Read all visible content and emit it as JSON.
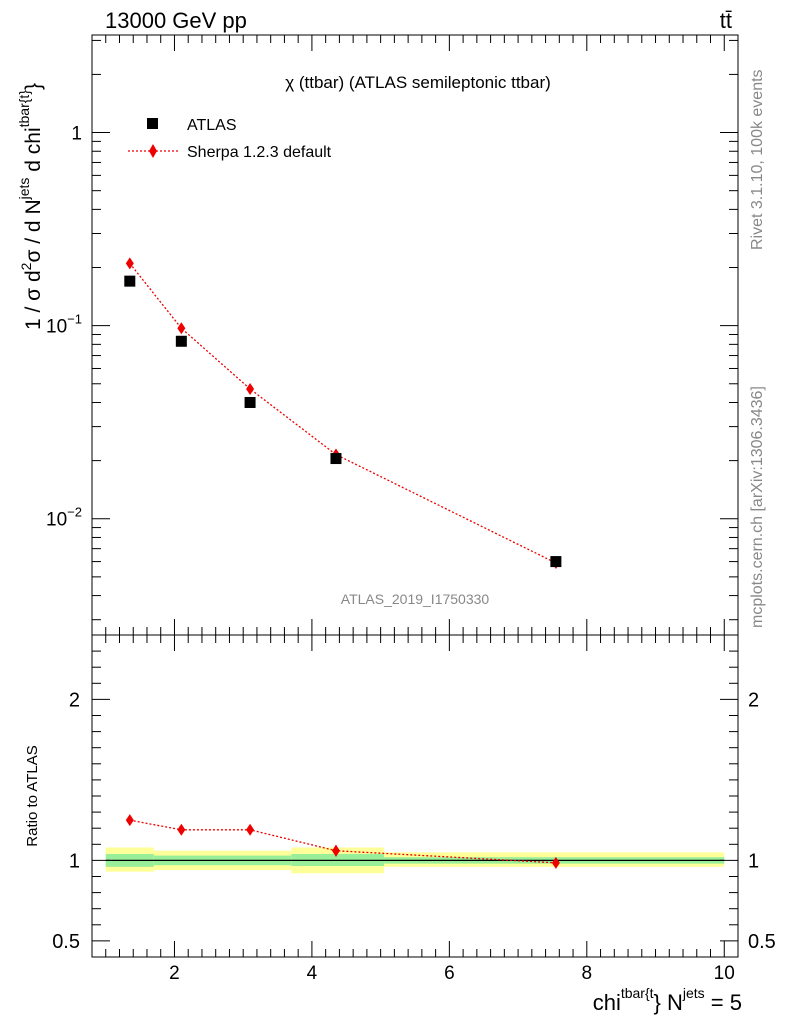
{
  "header": {
    "left_label": "13000 GeV pp",
    "right_label": "tt̄"
  },
  "side_labels": {
    "rivet": "Rivet 3.1.10,  100k events",
    "source": "mcplots.cern.ch [arXiv:1306.3436]"
  },
  "watermark": "ATLAS_2019_I1750330",
  "colors": {
    "data": "#000000",
    "mc": "#ee0000",
    "band_inner": "#99ee99",
    "band_outer": "#ffff99"
  },
  "chart_data": [
    {
      "type": "scatter",
      "panel": "main",
      "title": "χ (ttbar) (ATLAS semileptonic ttbar)",
      "ylabel": {
        "prefix": "1 / σ d",
        "sup1": "2",
        "mid1": "σ / d N",
        "sup2": "jets",
        "mid2": " d chi",
        "sup3": "tbar{t}",
        "suffix": "}"
      },
      "xlim": [
        0.8,
        10.2
      ],
      "ylim": [
        0.0025,
        3.2
      ],
      "yscale": "log",
      "ytick_labels": [
        {
          "value": 1,
          "base": "1",
          "exp": ""
        },
        {
          "value": 0.1,
          "base": "10",
          "exp": "−1"
        },
        {
          "value": 0.01,
          "base": "10",
          "exp": "−2"
        }
      ],
      "legend_position": "top-left",
      "series": [
        {
          "name": "ATLAS",
          "style": "black-square-markers",
          "x": [
            1.35,
            2.1,
            3.1,
            4.35,
            7.55
          ],
          "y": [
            0.17,
            0.083,
            0.04,
            0.0205,
            0.006
          ]
        },
        {
          "name": "Sherpa 1.2.3 default",
          "style": "red-diamond-dotted-line",
          "x": [
            1.35,
            2.1,
            3.1,
            4.35,
            7.55
          ],
          "y": [
            0.21,
            0.097,
            0.047,
            0.0215,
            0.0059
          ]
        }
      ]
    },
    {
      "type": "line",
      "panel": "ratio",
      "ylabel": "Ratio to ATLAS",
      "xlabel": {
        "base": "chi",
        "sup1": "tbar{t",
        "mid": "} N",
        "sup2": "jets",
        "suffix": " = 5"
      },
      "xlim": [
        0.8,
        10.2
      ],
      "ylim": [
        0.4,
        2.4
      ],
      "xticks": [
        2,
        4,
        6,
        8,
        10
      ],
      "xtick_labels": [
        "2",
        "4",
        "6",
        "8",
        "10"
      ],
      "yticks": [
        0.5,
        1,
        2
      ],
      "ytick_labels": [
        "0.5",
        "1",
        "2"
      ],
      "reference": 1,
      "bands": [
        {
          "x0": 1.0,
          "x1": 1.7,
          "inner": [
            0.96,
            1.04
          ],
          "outer": [
            0.93,
            1.08
          ]
        },
        {
          "x0": 1.7,
          "x1": 3.7,
          "inner": [
            0.97,
            1.03
          ],
          "outer": [
            0.94,
            1.06
          ]
        },
        {
          "x0": 3.7,
          "x1": 5.05,
          "inner": [
            0.965,
            1.04
          ],
          "outer": [
            0.92,
            1.08
          ]
        },
        {
          "x0": 5.05,
          "x1": 10.0,
          "inner": [
            0.98,
            1.02
          ],
          "outer": [
            0.96,
            1.05
          ]
        }
      ],
      "series": [
        {
          "name": "Sherpa 1.2.3 default",
          "x": [
            1.35,
            2.1,
            3.1,
            4.35,
            7.55
          ],
          "y": [
            1.25,
            1.19,
            1.19,
            1.06,
            0.985
          ],
          "yerr": [
            0.01,
            0.01,
            0.01,
            0.035,
            0.03
          ]
        }
      ]
    }
  ]
}
